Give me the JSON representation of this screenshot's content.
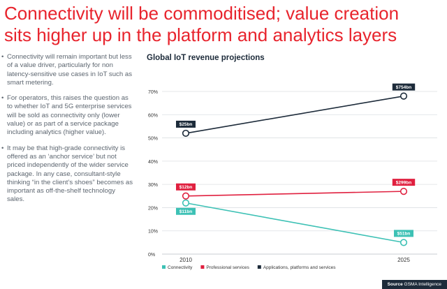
{
  "heading": {
    "line1": "Connectivity will be commoditised; value creation",
    "line2": "sits higher up in the platform and analytics layers"
  },
  "bullets": [
    "Connectivity will remain important but less of a value driver, particularly for non latency-sensitive use cases in IoT such as smart metering.",
    "For operators, this raises the question as to whether IoT and 5G enterprise services will be sold as connectivity only (lower value) or as part of a service package including analytics (higher value).",
    "It may be that high-grade connectivity is offered as an ‘anchor service’ but not priced independently of the wider service package. In any case, consultant-style thinking “in the client’s shoes” becomes as important as off-the-shelf technology sales."
  ],
  "bullet_marker": "•",
  "source": {
    "label": "Source",
    "text": "GSMA Intelligence"
  },
  "colors": {
    "title_red": "#e8242d",
    "connectivity": "#3dc1b5",
    "professional": "#e0203f",
    "applications": "#1d2b3a"
  },
  "chart_data": {
    "type": "line",
    "title": "Global IoT revenue projections",
    "x": [
      "2010",
      "2025"
    ],
    "ylim": [
      0,
      70
    ],
    "yticks": [
      "0%",
      "10%",
      "20%",
      "30%",
      "40%",
      "50%",
      "60%",
      "70%"
    ],
    "ytick_values": [
      0,
      10,
      20,
      30,
      40,
      50,
      60,
      70
    ],
    "grid": true,
    "legend_position": "bottom",
    "series": [
      {
        "name": "Connectivity",
        "color": "#3dc1b5",
        "values": [
          22,
          5
        ],
        "labels": [
          "$11bn",
          "$51bn"
        ]
      },
      {
        "name": "Professional services",
        "color": "#e0203f",
        "values": [
          25,
          27
        ],
        "labels": [
          "$12bn",
          "$299bn"
        ]
      },
      {
        "name": "Applications, platforms and services",
        "color": "#1d2b3a",
        "values": [
          52,
          68
        ],
        "labels": [
          "$25bn",
          "$754bn"
        ]
      }
    ]
  }
}
